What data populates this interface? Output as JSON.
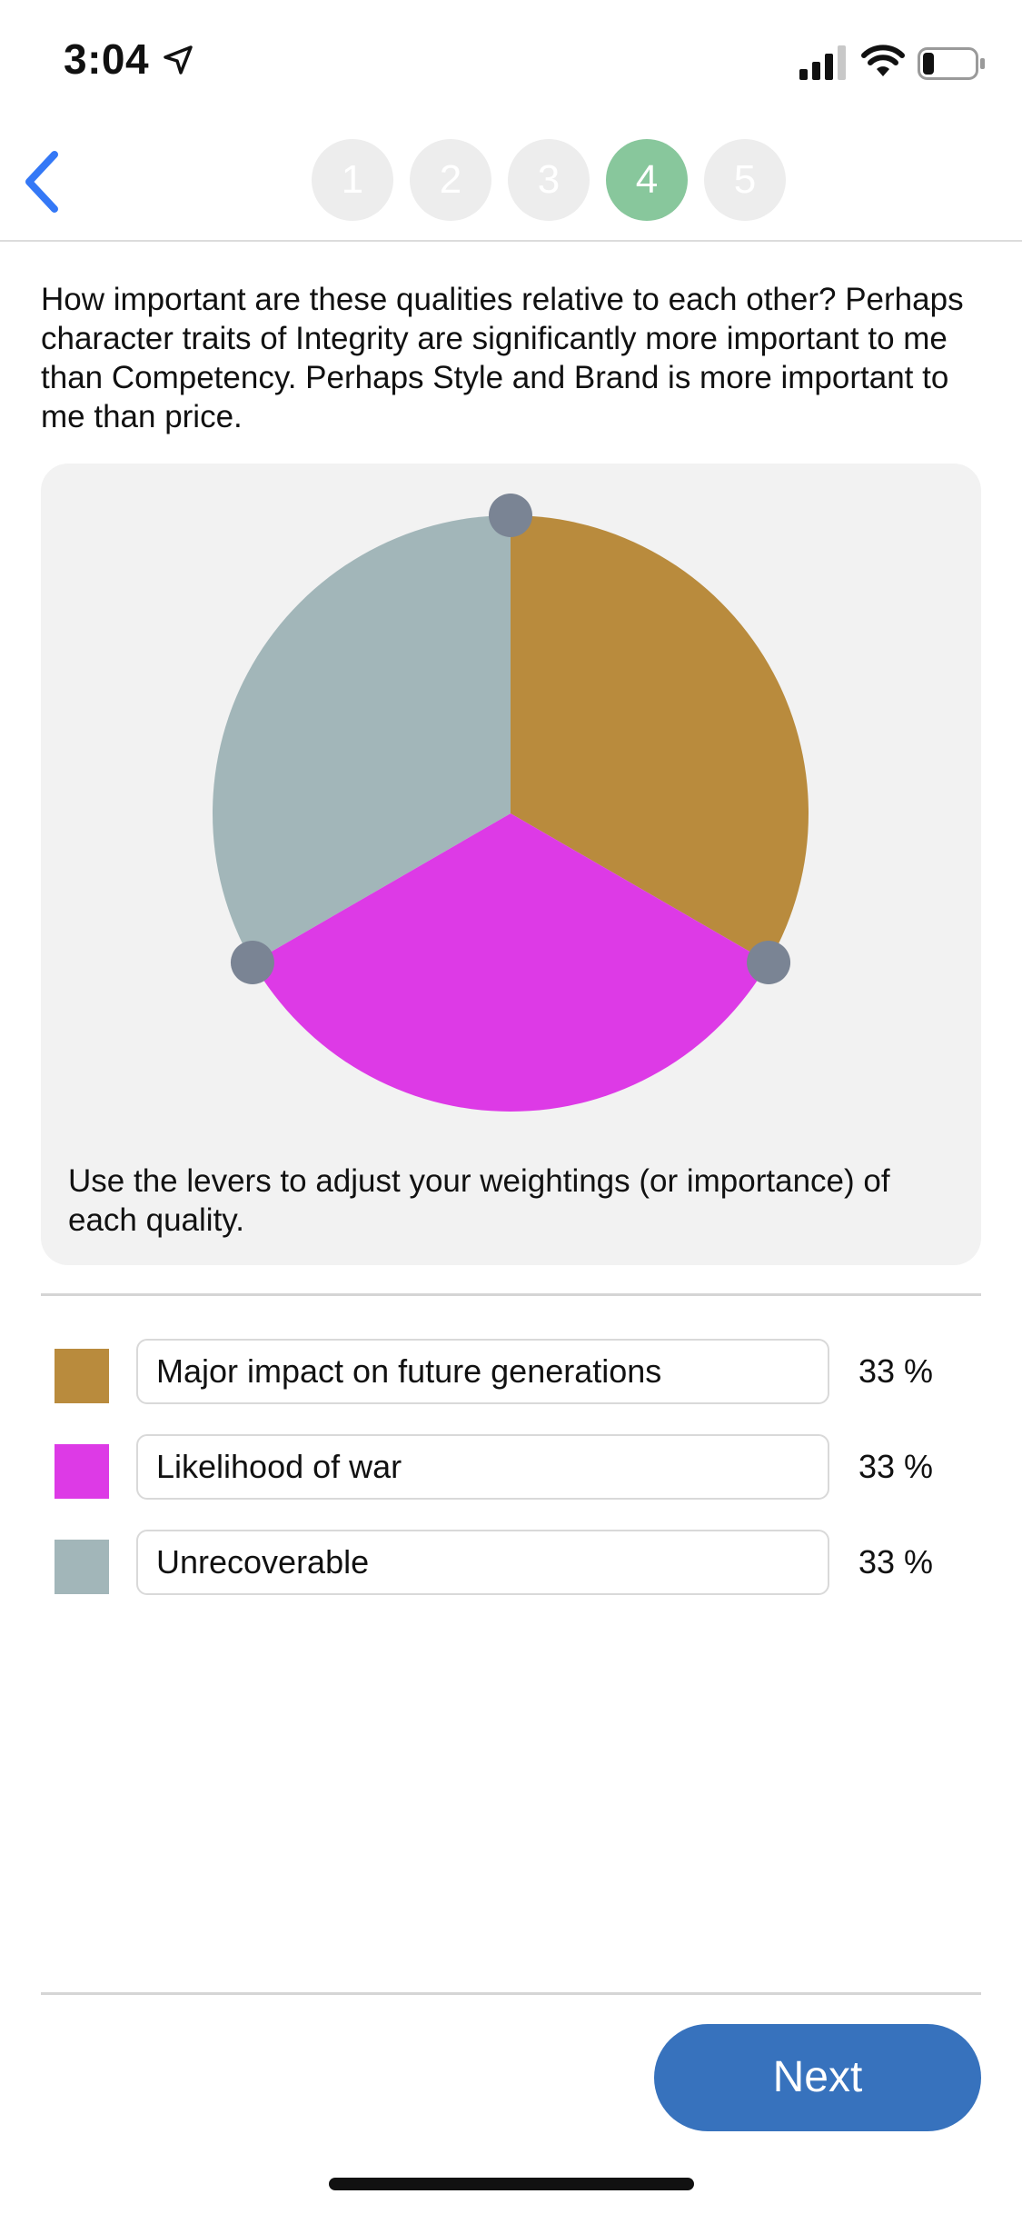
{
  "status_bar": {
    "time": "3:04"
  },
  "stepper": {
    "steps": [
      {
        "label": "1",
        "active": false
      },
      {
        "label": "2",
        "active": false
      },
      {
        "label": "3",
        "active": false
      },
      {
        "label": "4",
        "active": true
      },
      {
        "label": "5",
        "active": false
      }
    ],
    "current_step": 4
  },
  "question": "How important are these qualities relative to each other? Perhaps character traits of Integrity are significantly more important to me than Competency. Perhaps Style and Brand is more important to me than price.",
  "hint": "Use the levers to adjust your weightings (or importance) of each quality.",
  "chart_data": {
    "type": "pie",
    "start_angle_deg": 0,
    "slices": [
      {
        "label": "Major impact on future generations",
        "value": 33,
        "color": "#b98b3d"
      },
      {
        "label": "Likelihood of war",
        "value": 33,
        "color": "#dd3ae6"
      },
      {
        "label": "Unrecoverable",
        "value": 33,
        "color": "#a2b6b9"
      }
    ],
    "lever_color": "#7a8494"
  },
  "qualities": [
    {
      "label": "Major impact on future generations",
      "percent": "33 %",
      "color": "#b98b3d"
    },
    {
      "label": "Likelihood of war",
      "percent": "33 %",
      "color": "#dd3ae6"
    },
    {
      "label": "Unrecoverable",
      "percent": "33 %",
      "color": "#a2b6b9"
    }
  ],
  "next_label": "Next",
  "colors": {
    "accent": "#3772bd",
    "step_active": "#88c79c",
    "step_inactive": "#ededed",
    "back_icon": "#3478f6"
  },
  "icons": [
    "location-arrow-icon",
    "cellular-signal-icon",
    "wifi-icon",
    "battery-icon",
    "back-chevron-icon"
  ]
}
